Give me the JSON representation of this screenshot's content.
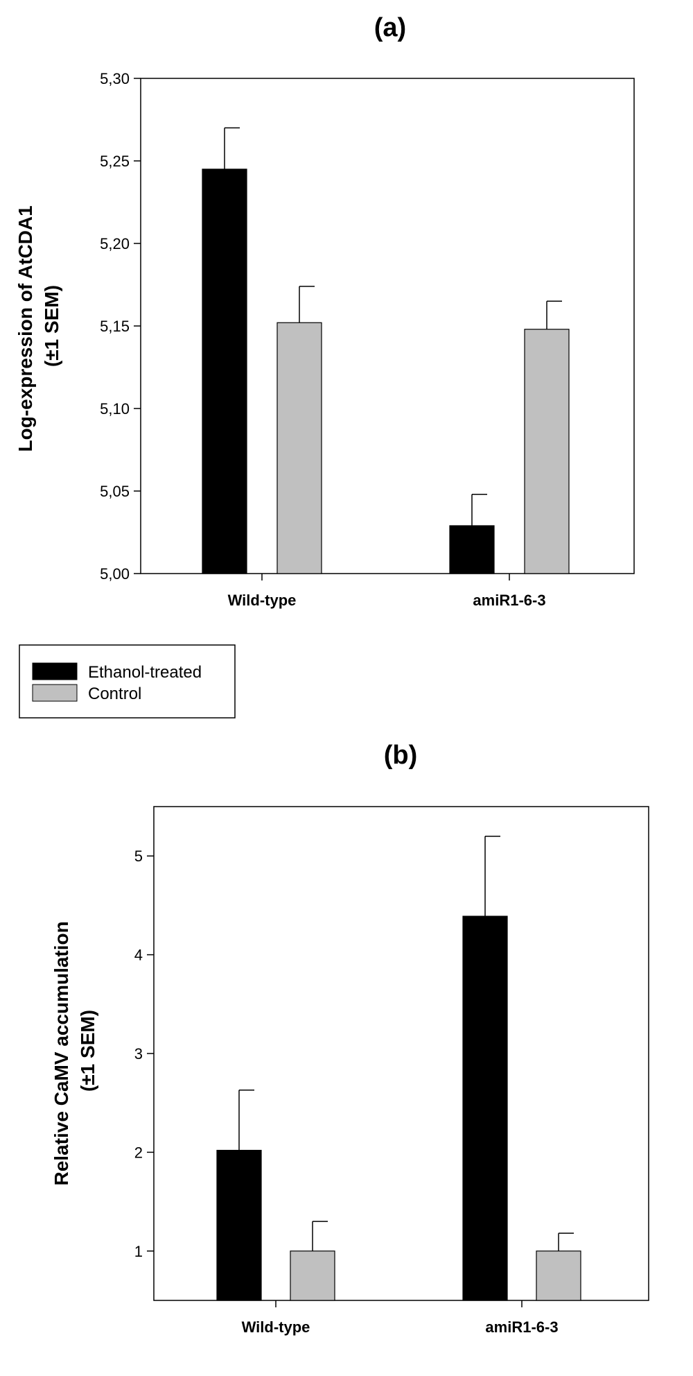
{
  "legend": {
    "entries": [
      {
        "label": "Ethanol-treated",
        "color": "#000000"
      },
      {
        "label": "Control",
        "color": "#c0c0c0"
      }
    ]
  },
  "chart_data": [
    {
      "type": "bar",
      "title": "(a)",
      "categories": [
        "Wild-type",
        "amiR1-6-3"
      ],
      "series": [
        {
          "name": "Ethanol-treated",
          "color": "#000000",
          "values": [
            5.245,
            5.029
          ],
          "errors": [
            0.025,
            0.019
          ]
        },
        {
          "name": "Control",
          "color": "#c0c0c0",
          "values": [
            5.152,
            5.148
          ],
          "errors": [
            0.022,
            0.017
          ]
        }
      ],
      "ylabel_lines": [
        "Log-expression of AtCDA1",
        "(±1 SEM)"
      ],
      "xlabel": "",
      "ylim": [
        5.0,
        5.3
      ],
      "yticks": [
        5.0,
        5.05,
        5.1,
        5.15,
        5.2,
        5.25,
        5.3
      ],
      "ytick_labels": [
        "5,00",
        "5,05",
        "5,10",
        "5,15",
        "5,20",
        "5,25",
        "5,30"
      ]
    },
    {
      "type": "bar",
      "title": "(b)",
      "categories": [
        "Wild-type",
        "amiR1-6-3"
      ],
      "series": [
        {
          "name": "Ethanol-treated",
          "color": "#000000",
          "values": [
            2.02,
            4.39
          ],
          "errors": [
            0.61,
            0.81
          ]
        },
        {
          "name": "Control",
          "color": "#c0c0c0",
          "values": [
            1.0,
            1.0
          ],
          "errors": [
            0.3,
            0.18
          ]
        }
      ],
      "ylabel_lines": [
        "Relative CaMV accumulation",
        "(±1 SEM)"
      ],
      "xlabel": "",
      "ylim": [
        0.5,
        5.5
      ],
      "yticks": [
        1,
        2,
        3,
        4,
        5
      ],
      "ytick_labels": [
        "1",
        "2",
        "3",
        "4",
        "5"
      ]
    }
  ]
}
